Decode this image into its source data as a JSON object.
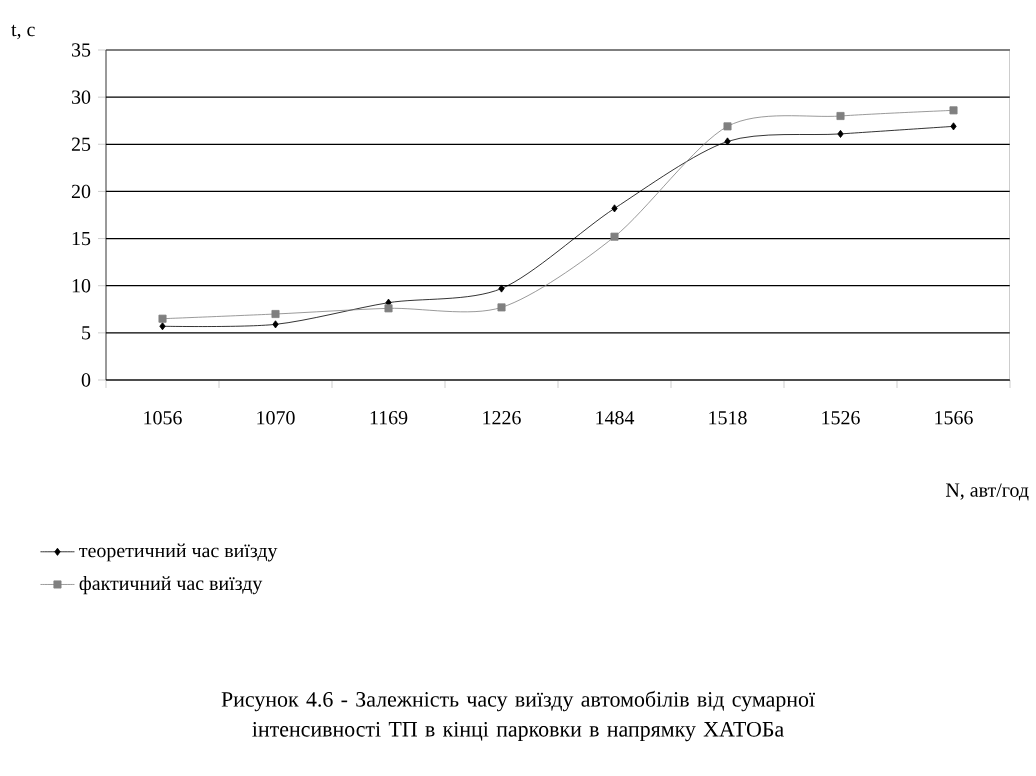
{
  "chart_data": {
    "type": "line",
    "xlabel": "N, авт/год",
    "ylabel": "t, с",
    "categories": [
      "1056",
      "1070",
      "1169",
      "1226",
      "1484",
      "1518",
      "1526",
      "1566"
    ],
    "series": [
      {
        "name": "теоретичний час виїзду",
        "color": "#000000",
        "marker": "diamond",
        "values": [
          5.7,
          5.9,
          8.2,
          9.7,
          18.2,
          25.3,
          26.1,
          26.9
        ]
      },
      {
        "name": "фактичний час виїзду",
        "color": "#808080",
        "marker": "square",
        "values": [
          6.5,
          7.0,
          7.6,
          7.7,
          15.2,
          26.9,
          28.0,
          28.6
        ]
      }
    ],
    "ylim": [
      0,
      35
    ],
    "yticks": [
      0,
      5,
      10,
      15,
      20,
      25,
      30,
      35
    ],
    "grid": "y",
    "legend": "bottom left",
    "line_style": "solid",
    "annotations": [
      "Рисунок 4.6 - Залежність часу виїзду автомобілів від сумарної  інтенсивності ТП в кінці парковки в напрямку ХАТОБа"
    ]
  }
}
